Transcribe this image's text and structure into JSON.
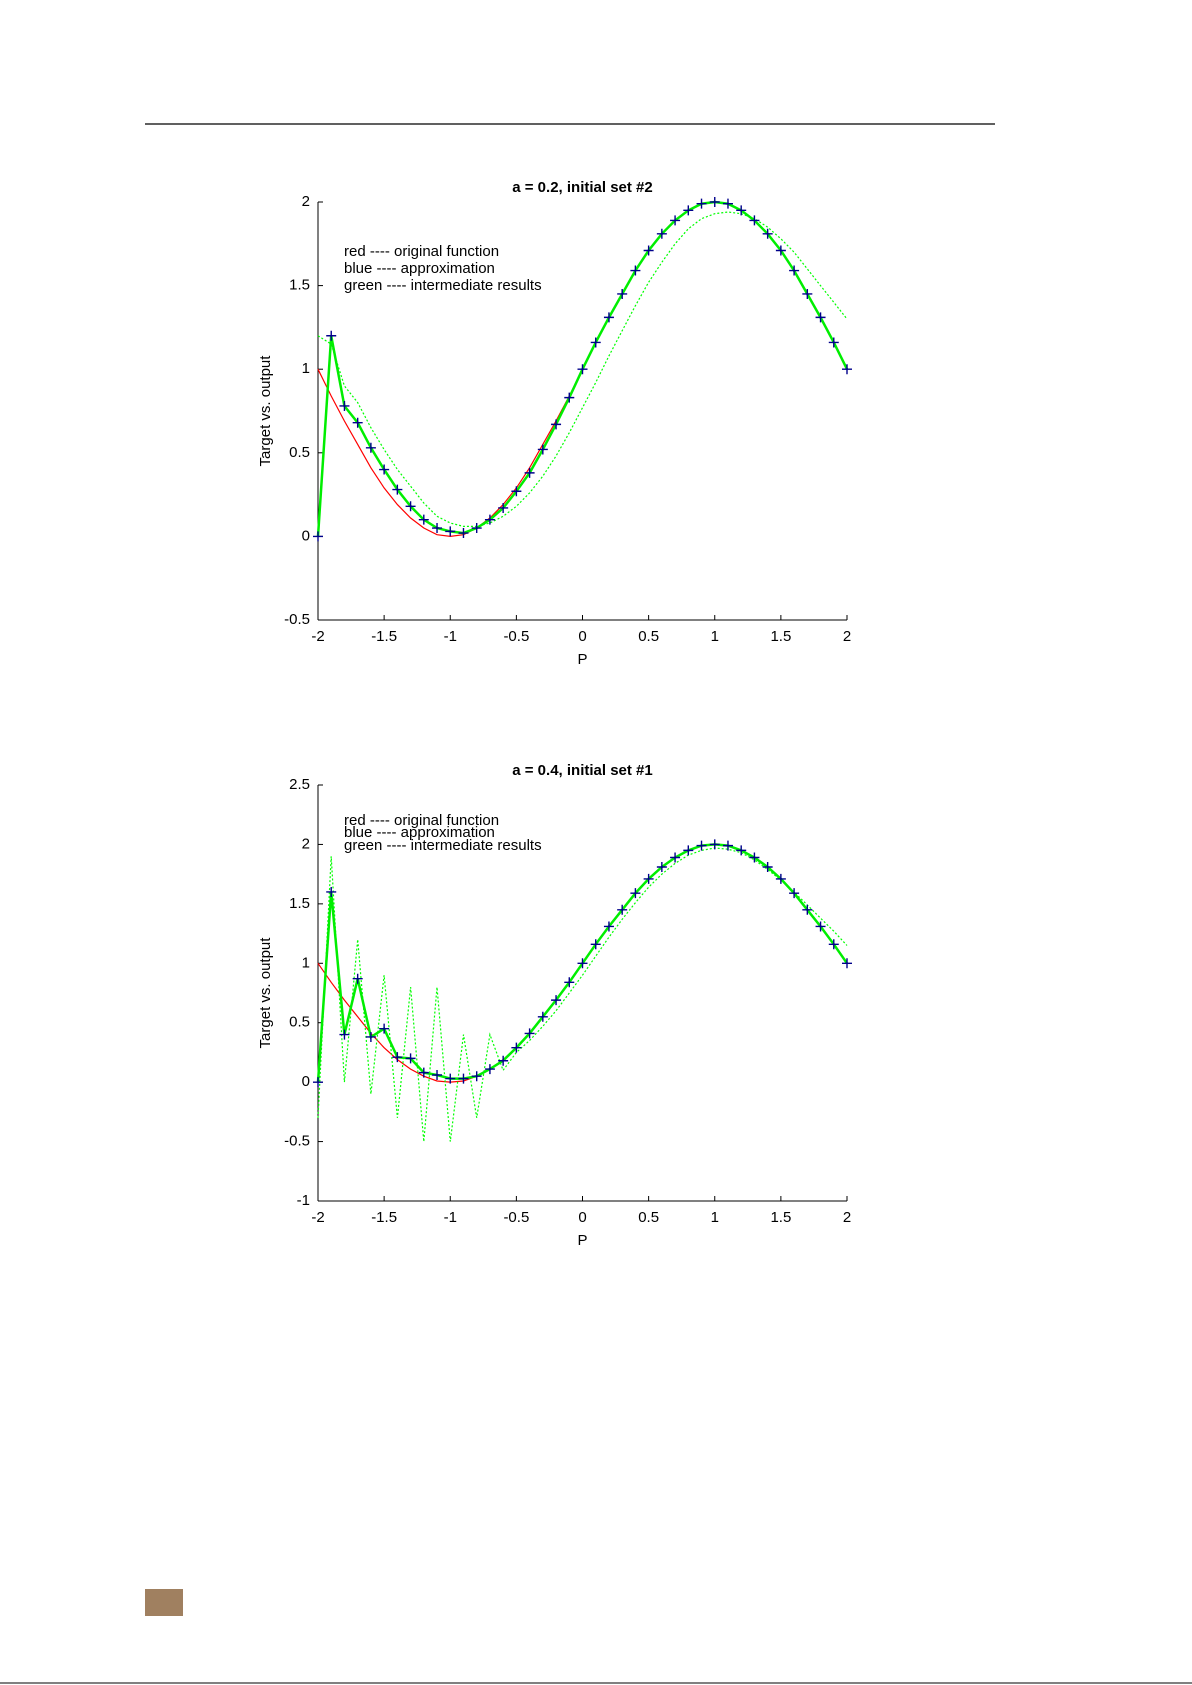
{
  "chart_data": [
    {
      "type": "line",
      "title": "a = 0.2, initial set #2",
      "x_label": "P",
      "y_label": "Target vs. output",
      "annotations": [
        "red ---- original function",
        "blue ---- approximation",
        "green ---- intermediate results"
      ],
      "x": [
        -2,
        -1.9,
        -1.8,
        -1.7,
        -1.6,
        -1.5,
        -1.4,
        -1.3,
        -1.2,
        -1.1,
        -1,
        -0.9,
        -0.8,
        -0.7,
        -0.6,
        -0.5,
        -0.4,
        -0.3,
        -0.2,
        -0.1,
        0,
        0.1,
        0.2,
        0.3,
        0.4,
        0.5,
        0.6,
        0.7,
        0.8,
        0.9,
        1,
        1.1,
        1.2,
        1.3,
        1.4,
        1.5,
        1.6,
        1.7,
        1.8,
        1.9,
        2
      ],
      "series": [
        {
          "color": "#ff0000",
          "style": "solid",
          "values": [
            1,
            0.84,
            0.69,
            0.55,
            0.41,
            0.29,
            0.19,
            0.11,
            0.05,
            0.01,
            0,
            0.01,
            0.05,
            0.11,
            0.19,
            0.29,
            0.41,
            0.55,
            0.69,
            0.84,
            1,
            1.16,
            1.31,
            1.45,
            1.59,
            1.71,
            1.81,
            1.89,
            1.95,
            1.99,
            2,
            1.99,
            1.95,
            1.89,
            1.81,
            1.71,
            1.59,
            1.45,
            1.31,
            1.16,
            1
          ]
        },
        {
          "color": "#00ff00",
          "style": "dotted",
          "values": [
            1.2,
            1.15,
            0.9,
            0.8,
            0.65,
            0.52,
            0.4,
            0.3,
            0.2,
            0.12,
            0.08,
            0.06,
            0.06,
            0.08,
            0.12,
            0.18,
            0.26,
            0.36,
            0.48,
            0.62,
            0.77,
            0.92,
            1.08,
            1.23,
            1.38,
            1.52,
            1.64,
            1.75,
            1.84,
            1.9,
            1.93,
            1.94,
            1.93,
            1.9,
            1.85,
            1.78,
            1.7,
            1.6,
            1.5,
            1.4,
            1.3
          ]
        },
        {
          "color": "#00ee00",
          "style": "solid",
          "values": [
            0,
            1.2,
            0.78,
            0.68,
            0.53,
            0.4,
            0.28,
            0.18,
            0.1,
            0.05,
            0.03,
            0.02,
            0.05,
            0.1,
            0.17,
            0.27,
            0.38,
            0.52,
            0.67,
            0.83,
            1,
            1.16,
            1.31,
            1.45,
            1.59,
            1.71,
            1.81,
            1.89,
            1.95,
            1.99,
            2,
            1.99,
            1.95,
            1.89,
            1.81,
            1.71,
            1.59,
            1.45,
            1.31,
            1.16,
            1
          ]
        },
        {
          "color": "#00008b",
          "style": "marker",
          "values": [
            0,
            1.2,
            0.78,
            0.68,
            0.53,
            0.4,
            0.28,
            0.18,
            0.1,
            0.05,
            0.03,
            0.02,
            0.05,
            0.1,
            0.17,
            0.27,
            0.38,
            0.52,
            0.67,
            0.83,
            1,
            1.16,
            1.31,
            1.45,
            1.59,
            1.71,
            1.81,
            1.89,
            1.95,
            1.99,
            2,
            1.99,
            1.95,
            1.89,
            1.81,
            1.71,
            1.59,
            1.45,
            1.31,
            1.16,
            1
          ]
        }
      ],
      "xlim": [
        -2,
        2
      ],
      "xticks": [
        -2,
        -1.5,
        -1,
        -0.5,
        0,
        0.5,
        1,
        1.5,
        2
      ],
      "ylim": [
        -0.5,
        2
      ],
      "yticks": [
        -0.5,
        0,
        0.5,
        1,
        1.5,
        2
      ]
    },
    {
      "type": "line",
      "title": "a = 0.4, initial set #1",
      "x_label": "P",
      "y_label": "Target vs. output",
      "annotations": [
        "red ---- original function",
        "blue ---- approximation",
        "green ---- intermediate results"
      ],
      "x": [
        -2,
        -1.9,
        -1.8,
        -1.7,
        -1.6,
        -1.5,
        -1.4,
        -1.3,
        -1.2,
        -1.1,
        -1,
        -0.9,
        -0.8,
        -0.7,
        -0.6,
        -0.5,
        -0.4,
        -0.3,
        -0.2,
        -0.1,
        0,
        0.1,
        0.2,
        0.3,
        0.4,
        0.5,
        0.6,
        0.7,
        0.8,
        0.9,
        1,
        1.1,
        1.2,
        1.3,
        1.4,
        1.5,
        1.6,
        1.7,
        1.8,
        1.9,
        2
      ],
      "series": [
        {
          "color": "#ff0000",
          "style": "solid",
          "values": [
            1,
            0.84,
            0.69,
            0.55,
            0.41,
            0.29,
            0.19,
            0.11,
            0.05,
            0.01,
            0,
            0.01,
            0.05,
            0.11,
            0.19,
            0.29,
            0.41,
            0.55,
            0.69,
            0.84,
            1,
            1.16,
            1.31,
            1.45,
            1.59,
            1.71,
            1.81,
            1.89,
            1.95,
            1.99,
            2,
            1.99,
            1.95,
            1.89,
            1.81,
            1.71,
            1.59,
            1.45,
            1.31,
            1.16,
            1
          ]
        },
        {
          "color": "#00ff00",
          "style": "dotted",
          "values": [
            -0.3,
            1.9,
            0,
            1.2,
            -0.1,
            0.9,
            -0.3,
            0.8,
            -0.5,
            0.8,
            -0.5,
            0.4,
            -0.3,
            0.4,
            0.1,
            0.25,
            0.35,
            0.47,
            0.6,
            0.75,
            0.9,
            1.06,
            1.22,
            1.37,
            1.51,
            1.64,
            1.75,
            1.84,
            1.91,
            1.95,
            1.97,
            1.96,
            1.93,
            1.87,
            1.79,
            1.7,
            1.6,
            1.49,
            1.38,
            1.27,
            1.15
          ]
        },
        {
          "color": "#00ee00",
          "style": "solid",
          "values": [
            0,
            1.6,
            0.4,
            0.87,
            0.38,
            0.45,
            0.21,
            0.2,
            0.08,
            0.06,
            0.03,
            0.03,
            0.05,
            0.11,
            0.18,
            0.29,
            0.41,
            0.55,
            0.69,
            0.84,
            1,
            1.16,
            1.31,
            1.45,
            1.59,
            1.71,
            1.81,
            1.89,
            1.95,
            1.99,
            2,
            1.99,
            1.95,
            1.89,
            1.81,
            1.71,
            1.59,
            1.45,
            1.31,
            1.16,
            1
          ]
        },
        {
          "color": "#00008b",
          "style": "marker",
          "values": [
            0,
            1.6,
            0.4,
            0.87,
            0.38,
            0.45,
            0.21,
            0.2,
            0.08,
            0.06,
            0.03,
            0.03,
            0.05,
            0.11,
            0.18,
            0.29,
            0.41,
            0.55,
            0.69,
            0.84,
            1,
            1.16,
            1.31,
            1.45,
            1.59,
            1.71,
            1.81,
            1.89,
            1.95,
            1.99,
            2,
            1.99,
            1.95,
            1.89,
            1.81,
            1.71,
            1.59,
            1.45,
            1.31,
            1.16,
            1
          ]
        }
      ],
      "xlim": [
        -2,
        2
      ],
      "xticks": [
        -2,
        -1.5,
        -1,
        -0.5,
        0,
        0.5,
        1,
        1.5,
        2
      ],
      "ylim": [
        -1,
        2.5
      ],
      "yticks": [
        -1,
        -0.5,
        0,
        0.5,
        1,
        1.5,
        2,
        2.5
      ]
    }
  ]
}
